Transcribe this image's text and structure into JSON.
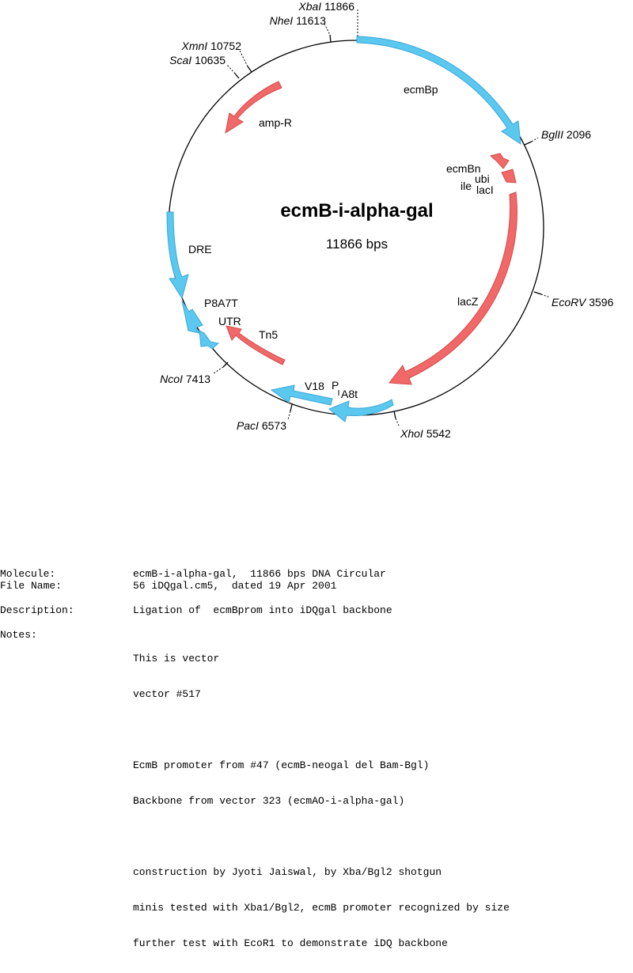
{
  "plasmid": {
    "name": "ecmB-i-alpha-gal",
    "size_label": "11866 bps"
  },
  "colors": {
    "promoter": "#5bc8f0",
    "gene": "#f06868",
    "backbone": "#000000"
  },
  "features": {
    "ecmBp": "ecmBp",
    "ampR": "amp-R",
    "ecmBn": "ecmBn",
    "ubi": "ubi",
    "ile": "ile",
    "lacI": "lacI",
    "lacZ": "lacZ",
    "DRE": "DRE",
    "P8A7T": "P8A7T",
    "UTR": "UTR",
    "Tn5": "Tn5",
    "V18": "V18",
    "P": "P",
    "A8t": "A8t"
  },
  "sites": {
    "xba": {
      "enzyme": "XbaI",
      "pos": "11866"
    },
    "nhe": {
      "enzyme": "NheI",
      "pos": "11613"
    },
    "xmn": {
      "enzyme": "XmnI",
      "pos": "10752"
    },
    "sca": {
      "enzyme": "ScaI",
      "pos": "10635"
    },
    "bgl": {
      "enzyme": "BglII",
      "pos": "2096"
    },
    "eco": {
      "enzyme": "EcoRV",
      "pos": "3596"
    },
    "xho": {
      "enzyme": "XhoI",
      "pos": "5542"
    },
    "pac": {
      "enzyme": "PacI",
      "pos": "6573"
    },
    "nco": {
      "enzyme": "NcoI",
      "pos": "7413"
    }
  },
  "info": {
    "molecule_label": "Molecule:",
    "molecule_value": "ecmB-i-alpha-gal,  11866 bps DNA Circular",
    "filename_label": "File Name:",
    "filename_value": "56 iDQgal.cm5,  dated 19 Apr 2001",
    "description_label": "Description:",
    "description_value": "Ligation of  ecmBprom into iDQgal backbone",
    "notes_label": "Notes:",
    "notes": [
      "This is vector",
      "vector #517",
      "",
      "EcmB promoter from #47 (ecmB-neogal del Bam-Bgl)",
      "Backbone from vector 323 (ecmAO-i-alpha-gal)",
      "",
      "construction by Jyoti Jaiswal, by Xba/Bgl2 shotgun",
      "minis tested with Xba1/Bgl2, ecmB promoter recognized by size",
      "further test with EcoR1 to demonstrate iDQ backbone"
    ]
  }
}
